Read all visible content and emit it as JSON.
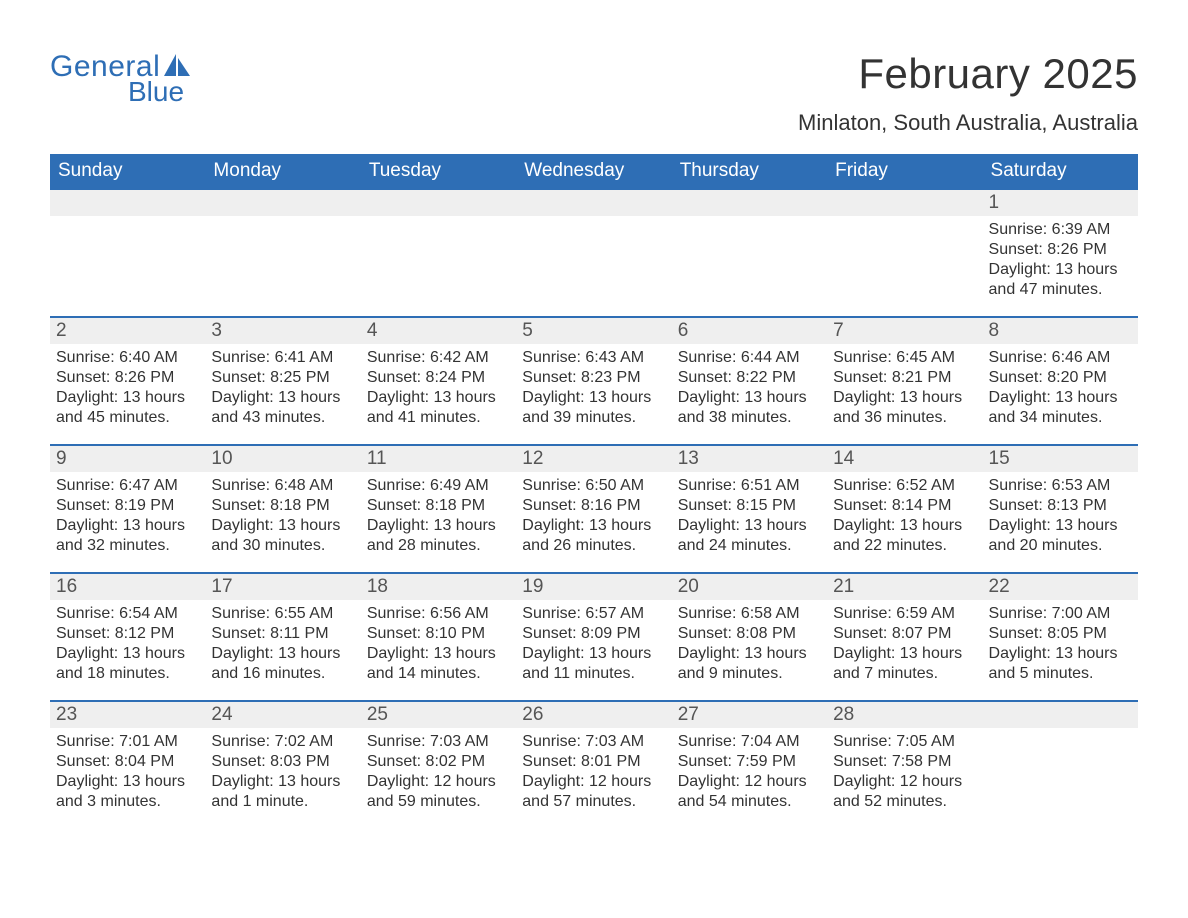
{
  "logo": {
    "general": "General",
    "blue": "Blue",
    "brand_color": "#2e6eb5"
  },
  "title": "February 2025",
  "location": "Minlaton, South Australia, Australia",
  "colors": {
    "header_bg": "#2e6eb5",
    "header_text": "#ffffff",
    "daynum_bg": "#efefef",
    "body_text": "#333333",
    "row_border": "#2e6eb5",
    "page_bg": "#ffffff"
  },
  "calendar": {
    "type": "table",
    "columns": [
      "Sunday",
      "Monday",
      "Tuesday",
      "Wednesday",
      "Thursday",
      "Friday",
      "Saturday"
    ],
    "column_header_fontsize": 19,
    "daynum_fontsize": 19,
    "body_fontsize": 16,
    "weeks": [
      [
        null,
        null,
        null,
        null,
        null,
        null,
        {
          "day": 1,
          "sunrise": "6:39 AM",
          "sunset": "8:26 PM",
          "daylight": "13 hours and 47 minutes."
        }
      ],
      [
        {
          "day": 2,
          "sunrise": "6:40 AM",
          "sunset": "8:26 PM",
          "daylight": "13 hours and 45 minutes."
        },
        {
          "day": 3,
          "sunrise": "6:41 AM",
          "sunset": "8:25 PM",
          "daylight": "13 hours and 43 minutes."
        },
        {
          "day": 4,
          "sunrise": "6:42 AM",
          "sunset": "8:24 PM",
          "daylight": "13 hours and 41 minutes."
        },
        {
          "day": 5,
          "sunrise": "6:43 AM",
          "sunset": "8:23 PM",
          "daylight": "13 hours and 39 minutes."
        },
        {
          "day": 6,
          "sunrise": "6:44 AM",
          "sunset": "8:22 PM",
          "daylight": "13 hours and 38 minutes."
        },
        {
          "day": 7,
          "sunrise": "6:45 AM",
          "sunset": "8:21 PM",
          "daylight": "13 hours and 36 minutes."
        },
        {
          "day": 8,
          "sunrise": "6:46 AM",
          "sunset": "8:20 PM",
          "daylight": "13 hours and 34 minutes."
        }
      ],
      [
        {
          "day": 9,
          "sunrise": "6:47 AM",
          "sunset": "8:19 PM",
          "daylight": "13 hours and 32 minutes."
        },
        {
          "day": 10,
          "sunrise": "6:48 AM",
          "sunset": "8:18 PM",
          "daylight": "13 hours and 30 minutes."
        },
        {
          "day": 11,
          "sunrise": "6:49 AM",
          "sunset": "8:18 PM",
          "daylight": "13 hours and 28 minutes."
        },
        {
          "day": 12,
          "sunrise": "6:50 AM",
          "sunset": "8:16 PM",
          "daylight": "13 hours and 26 minutes."
        },
        {
          "day": 13,
          "sunrise": "6:51 AM",
          "sunset": "8:15 PM",
          "daylight": "13 hours and 24 minutes."
        },
        {
          "day": 14,
          "sunrise": "6:52 AM",
          "sunset": "8:14 PM",
          "daylight": "13 hours and 22 minutes."
        },
        {
          "day": 15,
          "sunrise": "6:53 AM",
          "sunset": "8:13 PM",
          "daylight": "13 hours and 20 minutes."
        }
      ],
      [
        {
          "day": 16,
          "sunrise": "6:54 AM",
          "sunset": "8:12 PM",
          "daylight": "13 hours and 18 minutes."
        },
        {
          "day": 17,
          "sunrise": "6:55 AM",
          "sunset": "8:11 PM",
          "daylight": "13 hours and 16 minutes."
        },
        {
          "day": 18,
          "sunrise": "6:56 AM",
          "sunset": "8:10 PM",
          "daylight": "13 hours and 14 minutes."
        },
        {
          "day": 19,
          "sunrise": "6:57 AM",
          "sunset": "8:09 PM",
          "daylight": "13 hours and 11 minutes."
        },
        {
          "day": 20,
          "sunrise": "6:58 AM",
          "sunset": "8:08 PM",
          "daylight": "13 hours and 9 minutes."
        },
        {
          "day": 21,
          "sunrise": "6:59 AM",
          "sunset": "8:07 PM",
          "daylight": "13 hours and 7 minutes."
        },
        {
          "day": 22,
          "sunrise": "7:00 AM",
          "sunset": "8:05 PM",
          "daylight": "13 hours and 5 minutes."
        }
      ],
      [
        {
          "day": 23,
          "sunrise": "7:01 AM",
          "sunset": "8:04 PM",
          "daylight": "13 hours and 3 minutes."
        },
        {
          "day": 24,
          "sunrise": "7:02 AM",
          "sunset": "8:03 PM",
          "daylight": "13 hours and 1 minute."
        },
        {
          "day": 25,
          "sunrise": "7:03 AM",
          "sunset": "8:02 PM",
          "daylight": "12 hours and 59 minutes."
        },
        {
          "day": 26,
          "sunrise": "7:03 AM",
          "sunset": "8:01 PM",
          "daylight": "12 hours and 57 minutes."
        },
        {
          "day": 27,
          "sunrise": "7:04 AM",
          "sunset": "7:59 PM",
          "daylight": "12 hours and 54 minutes."
        },
        {
          "day": 28,
          "sunrise": "7:05 AM",
          "sunset": "7:58 PM",
          "daylight": "12 hours and 52 minutes."
        },
        null
      ]
    ]
  },
  "labels": {
    "sunrise_prefix": "Sunrise: ",
    "sunset_prefix": "Sunset: ",
    "daylight_prefix": "Daylight: "
  }
}
